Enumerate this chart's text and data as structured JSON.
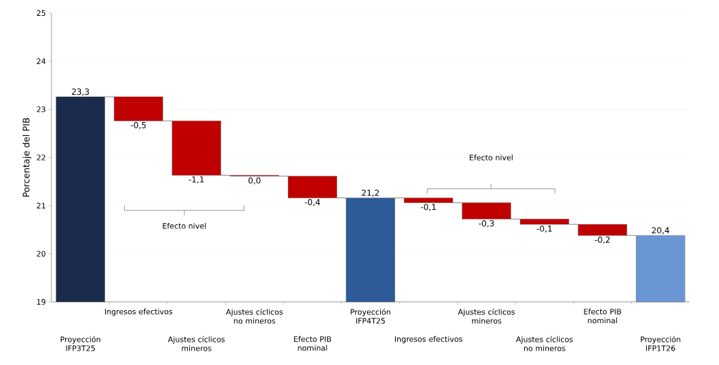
{
  "chart_data": {
    "type": "bar",
    "ylabel": "Porcentaje del PIB",
    "categories": [
      "Proyección IFP3T25",
      "Ingresos efectivos",
      "Ajustes cíclicos mineros",
      "Ajustes cíclicos no mineros",
      "Efecto PIB nominal",
      "Proyección IFP4T25",
      "Ingresos efectivos",
      "Ajustes cíclicos mineros",
      "Ajustes cíclicos no mineros",
      "Efecto PIB nominal",
      "Proyección IFP1T26"
    ],
    "values": [
      23.26,
      -0.5,
      -1.13,
      -0.02,
      -0.45,
      21.16,
      -0.1,
      -0.34,
      -0.11,
      -0.23,
      20.38
    ],
    "base": [
      null,
      23.26,
      22.76,
      21.63,
      21.61,
      null,
      21.16,
      21.06,
      20.72,
      20.61,
      null
    ],
    "colors": [
      "#1a2b4c",
      "#c00000",
      "#c00000",
      "#c00000",
      "#c00000",
      "#2e5a97",
      "#c00000",
      "#c00000",
      "#c00000",
      "#c00000",
      "#6a97d4"
    ],
    "value_labels": [
      "23,3",
      "-0,5",
      "-1,1",
      "0,0",
      "-0,4",
      "21,2",
      "-0,1",
      "-0,3",
      "-0,1",
      "-0,2",
      "20,4"
    ],
    "ylim": [
      19,
      25
    ],
    "yticks": [
      19,
      20,
      21,
      22,
      23,
      24,
      25
    ],
    "grid": "y",
    "annotations": [
      "Efecto nivel",
      "Efecto nivel"
    ]
  }
}
